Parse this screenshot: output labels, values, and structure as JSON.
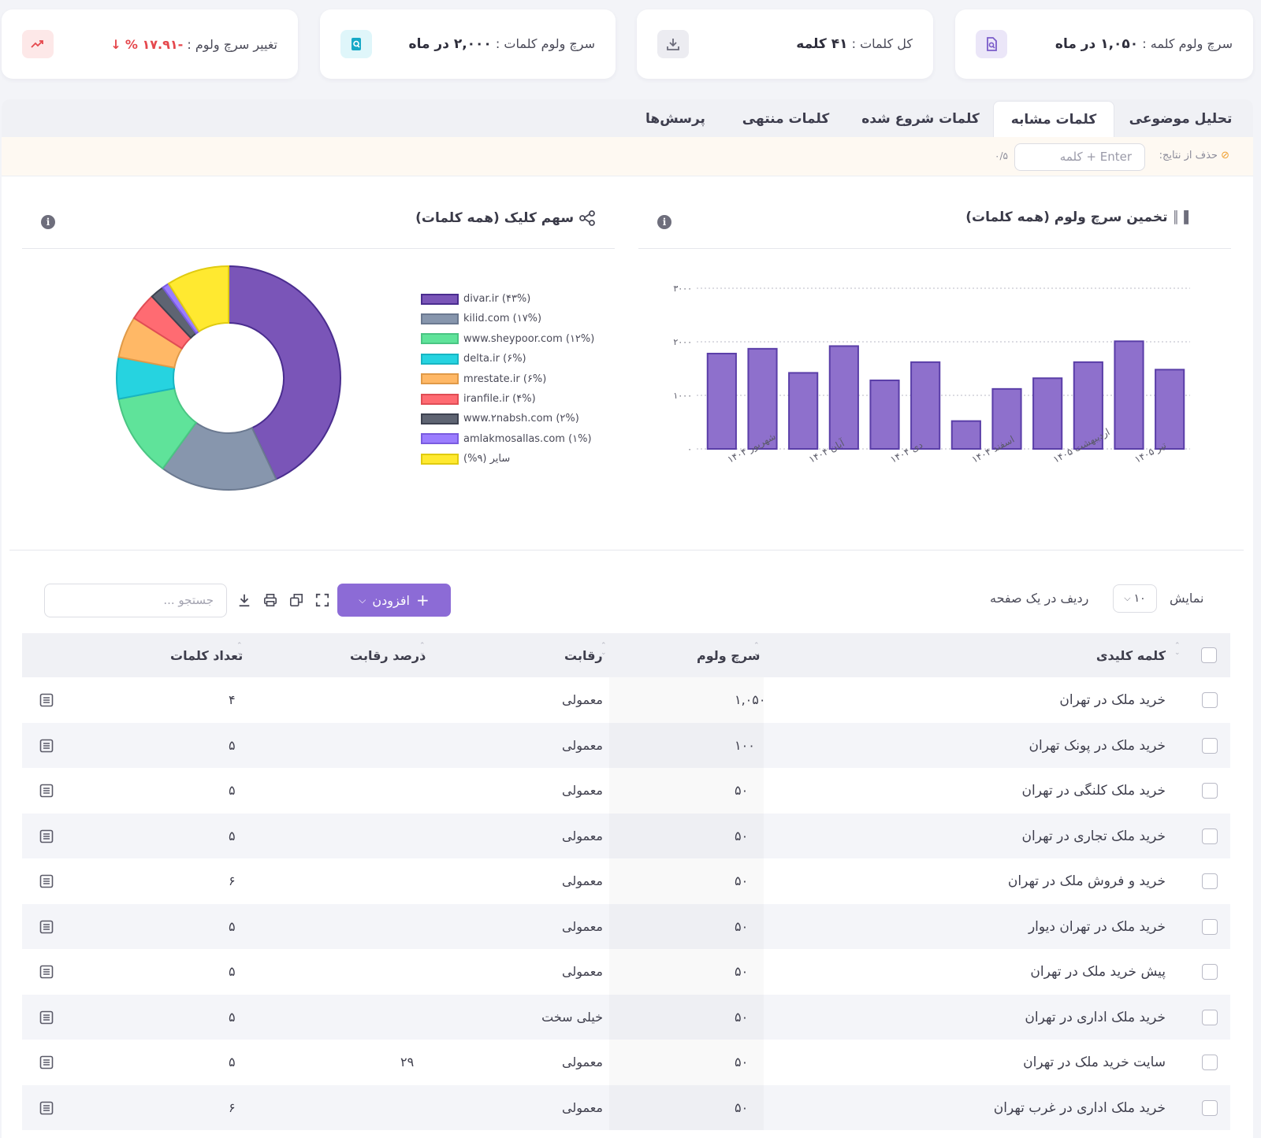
{
  "stats": [
    {
      "label": "سرچ ولوم کلمه :",
      "value": "۱,۰۵۰ در ماه",
      "icon": "document-search-icon",
      "icon_color": "#7b5cc9",
      "icon_bg": "#ebe6f8"
    },
    {
      "label": "کل کلمات :",
      "value": "۴۱ کلمه",
      "icon": "download-icon",
      "icon_color": "#6b6b7a",
      "icon_bg": "#ececf1"
    },
    {
      "label": "سرچ ولوم کلمات :",
      "value": "۲,۰۰۰ در ماه",
      "icon": "search-file-icon",
      "icon_color": "#17a9c7",
      "icon_bg": "#dff6fa"
    },
    {
      "label": "تغییر سرچ ولوم :",
      "value": "-۱۷.۹۱ %",
      "icon": "trend-up-icon",
      "icon_color": "#e5484d",
      "icon_bg": "#fde8e8"
    }
  ],
  "tabs": [
    {
      "label": "تحلیل موضوعی"
    },
    {
      "label": "کلمات مشابه"
    },
    {
      "label": "کلمات شروع شده"
    },
    {
      "label": "کلمات منتهی"
    },
    {
      "label": "پرسش‌ها"
    }
  ],
  "filter": {
    "label": "حذف از نتایج:",
    "placeholder": "کلمه + Enter",
    "count": "۰/۵"
  },
  "volume_card": {
    "title": "تخمین سرچ ولوم (همه کلمات)"
  },
  "click_card": {
    "title": "سهم کلیک (همه کلمات)"
  },
  "chart_data": [
    {
      "type": "bar",
      "title": "تخمین سرچ ولوم (همه کلمات)",
      "categories": [
        "شهریور ۱۴۰۴",
        "",
        "آبان ۱۴۰۴",
        "",
        "دی ۱۴۰۴",
        "",
        "اسفند ۱۴۰۴",
        "",
        "اردیبهشت ۱۴۰۵",
        "",
        "تیر ۱۴۰۵",
        ""
      ],
      "values": [
        1780,
        1870,
        1420,
        1920,
        1280,
        1620,
        520,
        1120,
        1320,
        1620,
        2010,
        1480
      ],
      "ylim": [
        0,
        3000
      ],
      "yticks": [
        {
          "value": 0,
          "label": "۰"
        },
        {
          "value": 1000,
          "label": "۱۰۰۰"
        },
        {
          "value": 2000,
          "label": "۲۰۰۰"
        },
        {
          "value": 3000,
          "label": "۳۰۰۰"
        }
      ],
      "grid": true,
      "color": "#8e70cc",
      "border_color": "#5a3ea8"
    },
    {
      "type": "pie",
      "title": "سهم کلیک (همه کلمات)",
      "legend_position": "right",
      "slices": [
        {
          "label": "divar.ir (۴۳%)",
          "value": 43,
          "color": "#7a55b8",
          "border": "#4a2d8f"
        },
        {
          "label": "kilid.com (۱۷%)",
          "value": 17,
          "color": "#8796ad",
          "border": "#6b7990"
        },
        {
          "label": "www.sheypoor.com (۱۲%)",
          "value": 12,
          "color": "#5fe39a",
          "border": "#4ac583"
        },
        {
          "label": "delta.ir (۶%)",
          "value": 6,
          "color": "#26d3e0",
          "border": "#18b5c2"
        },
        {
          "label": "mrestate.ir (۶%)",
          "value": 6,
          "color": "#ffb866",
          "border": "#e09a48"
        },
        {
          "label": "iranfile.ir (۴%)",
          "value": 4,
          "color": "#ff6b72",
          "border": "#e04d55"
        },
        {
          "label": "www.۲nabsh.com (۲%)",
          "value": 2,
          "color": "#5e6472",
          "border": "#3d4250"
        },
        {
          "label": "amlakmosallas.com (۱%)",
          "value": 1,
          "color": "#9b7dff",
          "border": "#7a5ce0"
        },
        {
          "label": "سایر (۹%)",
          "value": 9,
          "color": "#ffe930",
          "border": "#e0cb10"
        }
      ]
    }
  ],
  "toolbar": {
    "show_label": "نمایش",
    "per_page_value": "۱۰",
    "per_page_suffix": "ردیف در یک صفحه",
    "add_label": "افزودن",
    "search_placeholder": "جستجو ..."
  },
  "table": {
    "headers": {
      "keyword": "کلمه کلیدی",
      "volume": "سرچ ولوم",
      "competition": "رقابت",
      "competition_percent": "درصد رقابت",
      "word_count": "تعداد کلمات"
    },
    "rows": [
      {
        "keyword": "خرید ملک در تهران",
        "volume": "۱,۰۵۰",
        "competition": "معمولی",
        "percent": "",
        "words": "۴"
      },
      {
        "keyword": "خرید ملک در پونک تهران",
        "volume": "۱۰۰",
        "competition": "معمولی",
        "percent": "",
        "words": "۵"
      },
      {
        "keyword": "خرید ملک کلنگی در تهران",
        "volume": "۵۰",
        "competition": "معمولی",
        "percent": "",
        "words": "۵"
      },
      {
        "keyword": "خرید ملک تجاری در تهران",
        "volume": "۵۰",
        "competition": "معمولی",
        "percent": "",
        "words": "۵"
      },
      {
        "keyword": "خرید و فروش ملک در تهران",
        "volume": "۵۰",
        "competition": "معمولی",
        "percent": "",
        "words": "۶"
      },
      {
        "keyword": "خرید ملک در تهران دیوار",
        "volume": "۵۰",
        "competition": "معمولی",
        "percent": "",
        "words": "۵"
      },
      {
        "keyword": "پیش خرید ملک در تهران",
        "volume": "۵۰",
        "competition": "معمولی",
        "percent": "",
        "words": "۵"
      },
      {
        "keyword": "خرید ملک اداری در تهران",
        "volume": "۵۰",
        "competition": "خیلی سخت",
        "percent": "",
        "words": "۵"
      },
      {
        "keyword": "سایت خرید ملک در تهران",
        "volume": "۵۰",
        "competition": "معمولی",
        "percent": "۲۹",
        "words": "۵"
      },
      {
        "keyword": "خرید ملک اداری در غرب تهران",
        "volume": "۵۰",
        "competition": "معمولی",
        "percent": "",
        "words": "۶"
      }
    ]
  }
}
